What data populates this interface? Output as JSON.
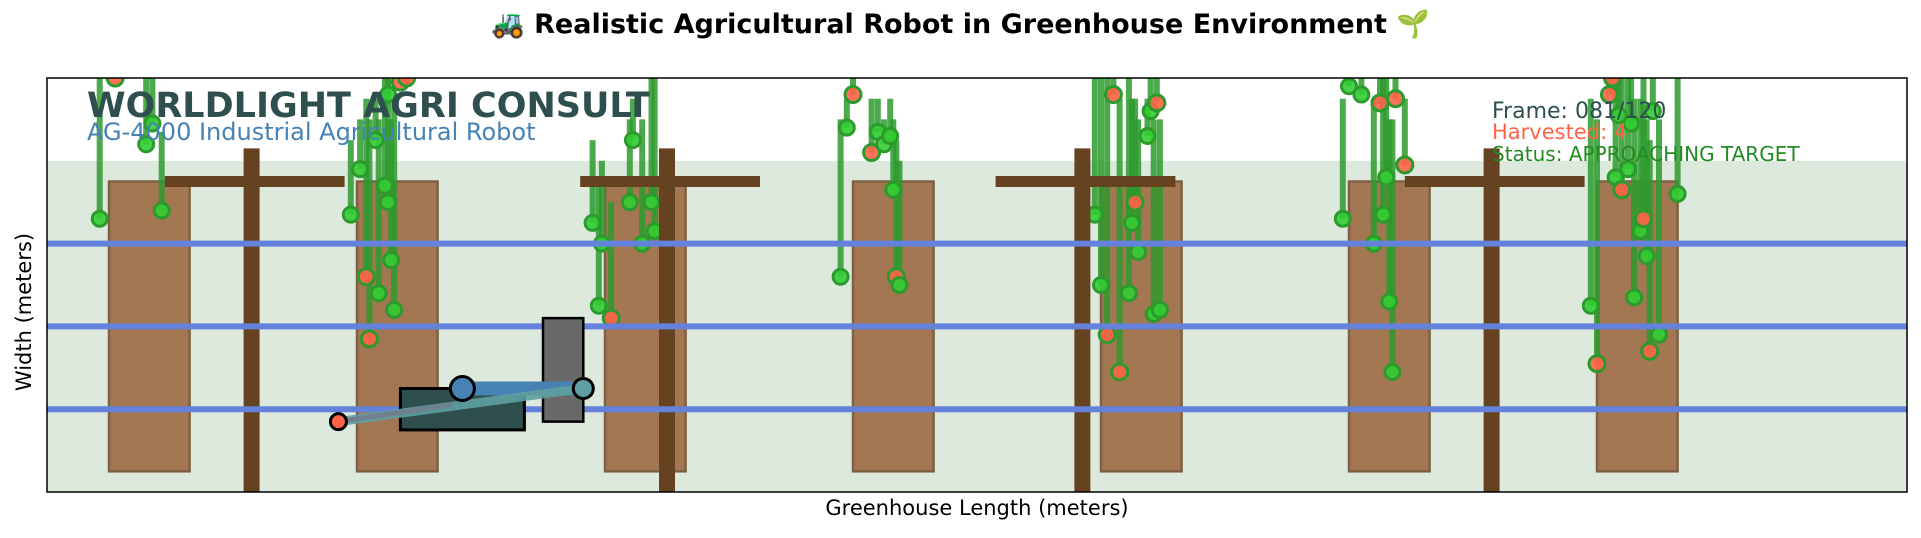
{
  "chart_data": {
    "type": "scatter",
    "title": "🚜 Realistic Agricultural Robot in Greenhouse Environment 🌱",
    "xlabel": "Greenhouse Length (meters)",
    "ylabel": "Width (meters)",
    "xlim": [
      0,
      30
    ],
    "ylim": [
      0,
      10
    ],
    "grid": false,
    "legend": "none",
    "brand_title": "WORLDLIGHT AGRI CONSULT",
    "robot_model": "AG-4000 Industrial Agricultural Robot",
    "frame_text": "Frame: 081/120",
    "harvested_text": "Harvested: 4",
    "status_text": "Status: APPROACHING TARGET",
    "colors": {
      "greenhouse_floor": "#dce9dc",
      "growing_bed": "#a0714a",
      "support_frame": "#654321",
      "irrigation_line": "#6482dc",
      "plant_stem": "#2d9a2d",
      "ripe_fruit": "#ff6347",
      "unripe_fruit": "#32cd32",
      "robot_body": "#2f4f4f",
      "robot_tower": "#696969",
      "robot_arm": "#4682b4"
    },
    "greenhouse": {
      "floor_y": [
        0,
        8
      ]
    },
    "beds": [
      {
        "x": 1.0,
        "y0": 0.5,
        "y1": 7.5
      },
      {
        "x": 5.0,
        "y0": 0.5,
        "y1": 7.5
      },
      {
        "x": 9.0,
        "y0": 0.5,
        "y1": 7.5
      },
      {
        "x": 13.0,
        "y0": 0.5,
        "y1": 7.5
      },
      {
        "x": 17.0,
        "y0": 0.5,
        "y1": 7.5
      },
      {
        "x": 21.0,
        "y0": 0.5,
        "y1": 7.5
      },
      {
        "x": 25.0,
        "y0": 0.5,
        "y1": 7.5
      }
    ],
    "bed_width": 1.3,
    "posts": [
      3.3,
      10.0,
      16.7,
      23.3
    ],
    "crossbeams": [
      {
        "x0": 1.9,
        "x1": 4.8,
        "y": 7.5
      },
      {
        "x0": 8.6,
        "x1": 11.5,
        "y": 7.5
      },
      {
        "x0": 15.3,
        "x1": 18.2,
        "y": 7.5
      },
      {
        "x0": 21.9,
        "x1": 24.8,
        "y": 7.5
      }
    ],
    "irrigation_lines_y": [
      6,
      4,
      2
    ],
    "robot": {
      "body": {
        "x0": 5.7,
        "x1": 7.7,
        "y0": 1.5,
        "y1": 2.5
      },
      "tower": {
        "x0": 8.0,
        "x1": 8.65,
        "y0": 1.7,
        "y1": 4.2
      },
      "joints": [
        [
          6.7,
          2.5
        ],
        [
          8.65,
          2.5
        ]
      ],
      "arm_segments": [
        [
          [
            6.7,
            2.5
          ],
          [
            8.65,
            2.5
          ]
        ],
        [
          [
            4.7,
            1.7
          ],
          [
            8.65,
            2.5
          ]
        ]
      ],
      "gripper": [
        4.7,
        1.7
      ]
    },
    "plants": [
      {
        "bed": 0,
        "x": 0.85,
        "y": 6.6,
        "top": 10,
        "ripe": false
      },
      {
        "bed": 0,
        "x": 1.1,
        "y": 10.0,
        "top": 10,
        "ripe": true
      },
      {
        "bed": 0,
        "x": 1.6,
        "y": 8.4,
        "top": 10,
        "ripe": false
      },
      {
        "bed": 0,
        "x": 1.7,
        "y": 8.9,
        "top": 10,
        "ripe": false
      },
      {
        "bed": 0,
        "x": 1.85,
        "y": 6.8,
        "top": 8.7,
        "ripe": false
      },
      {
        "bed": 1,
        "x": 4.9,
        "y": 6.7,
        "top": 8.5,
        "ripe": false
      },
      {
        "bed": 1,
        "x": 5.05,
        "y": 7.8,
        "top": 9.0,
        "ripe": false
      },
      {
        "bed": 1,
        "x": 5.15,
        "y": 5.2,
        "top": 9.5,
        "ripe": true
      },
      {
        "bed": 1,
        "x": 5.2,
        "y": 3.7,
        "top": 9.0,
        "ripe": true
      },
      {
        "bed": 1,
        "x": 5.3,
        "y": 8.5,
        "top": 9.5,
        "ripe": false
      },
      {
        "bed": 1,
        "x": 5.35,
        "y": 4.8,
        "top": 9.0,
        "ripe": false
      },
      {
        "bed": 1,
        "x": 5.45,
        "y": 7.4,
        "top": 10,
        "ripe": false
      },
      {
        "bed": 1,
        "x": 5.5,
        "y": 9.6,
        "top": 10,
        "ripe": false
      },
      {
        "bed": 1,
        "x": 5.55,
        "y": 5.6,
        "top": 9.0,
        "ripe": false
      },
      {
        "bed": 1,
        "x": 5.6,
        "y": 4.4,
        "top": 9.5,
        "ripe": false
      },
      {
        "bed": 1,
        "x": 5.7,
        "y": 9.9,
        "top": 10,
        "ripe": true
      },
      {
        "bed": 1,
        "x": 5.8,
        "y": 10.0,
        "top": 10,
        "ripe": true
      },
      {
        "bed": 1,
        "x": 5.5,
        "y": 7.0,
        "top": 10,
        "ripe": false
      },
      {
        "bed": 2,
        "x": 8.8,
        "y": 6.5,
        "top": 8.5,
        "ripe": false
      },
      {
        "bed": 2,
        "x": 8.95,
        "y": 6.0,
        "top": 8.0,
        "ripe": false
      },
      {
        "bed": 2,
        "x": 8.9,
        "y": 4.5,
        "top": 7.5,
        "ripe": false
      },
      {
        "bed": 2,
        "x": 9.1,
        "y": 4.2,
        "top": 7.0,
        "ripe": true
      },
      {
        "bed": 2,
        "x": 9.4,
        "y": 7.0,
        "top": 9.0,
        "ripe": false
      },
      {
        "bed": 2,
        "x": 9.45,
        "y": 8.5,
        "top": 9.5,
        "ripe": false
      },
      {
        "bed": 2,
        "x": 9.6,
        "y": 6.0,
        "top": 9.0,
        "ripe": false
      },
      {
        "bed": 2,
        "x": 9.75,
        "y": 7.0,
        "top": 10,
        "ripe": false
      },
      {
        "bed": 2,
        "x": 9.8,
        "y": 6.3,
        "top": 10,
        "ripe": false
      },
      {
        "bed": 3,
        "x": 12.8,
        "y": 5.2,
        "top": 9.0,
        "ripe": false
      },
      {
        "bed": 3,
        "x": 12.9,
        "y": 8.8,
        "top": 9.5,
        "ripe": false
      },
      {
        "bed": 3,
        "x": 13.0,
        "y": 9.6,
        "top": 10,
        "ripe": true
      },
      {
        "bed": 3,
        "x": 13.3,
        "y": 8.2,
        "top": 9.5,
        "ripe": true
      },
      {
        "bed": 3,
        "x": 13.4,
        "y": 8.7,
        "top": 9.5,
        "ripe": false
      },
      {
        "bed": 3,
        "x": 13.5,
        "y": 8.4,
        "top": 9.0,
        "ripe": false
      },
      {
        "bed": 3,
        "x": 13.6,
        "y": 8.6,
        "top": 9.5,
        "ripe": false
      },
      {
        "bed": 3,
        "x": 13.65,
        "y": 7.3,
        "top": 9.0,
        "ripe": false
      },
      {
        "bed": 3,
        "x": 13.7,
        "y": 5.2,
        "top": 8.5,
        "ripe": true
      },
      {
        "bed": 3,
        "x": 13.75,
        "y": 5.0,
        "top": 8.0,
        "ripe": false
      },
      {
        "bed": 4,
        "x": 16.9,
        "y": 6.7,
        "top": 10,
        "ripe": false
      },
      {
        "bed": 4,
        "x": 17.0,
        "y": 5.0,
        "top": 10,
        "ripe": false
      },
      {
        "bed": 4,
        "x": 17.1,
        "y": 3.8,
        "top": 10,
        "ripe": true
      },
      {
        "bed": 4,
        "x": 17.2,
        "y": 9.6,
        "top": 10,
        "ripe": true
      },
      {
        "bed": 4,
        "x": 17.3,
        "y": 2.9,
        "top": 9.5,
        "ripe": true
      },
      {
        "bed": 4,
        "x": 17.45,
        "y": 4.8,
        "top": 10,
        "ripe": false
      },
      {
        "bed": 4,
        "x": 17.5,
        "y": 6.5,
        "top": 9.5,
        "ripe": false
      },
      {
        "bed": 4,
        "x": 17.55,
        "y": 7.0,
        "top": 9.5,
        "ripe": true
      },
      {
        "bed": 4,
        "x": 17.6,
        "y": 5.8,
        "top": 9.0,
        "ripe": false
      },
      {
        "bed": 4,
        "x": 17.75,
        "y": 8.6,
        "top": 9.5,
        "ripe": false
      },
      {
        "bed": 4,
        "x": 17.8,
        "y": 9.2,
        "top": 10,
        "ripe": false
      },
      {
        "bed": 4,
        "x": 17.85,
        "y": 4.3,
        "top": 9.0,
        "ripe": false
      },
      {
        "bed": 4,
        "x": 17.9,
        "y": 9.4,
        "top": 10,
        "ripe": true
      },
      {
        "bed": 4,
        "x": 17.95,
        "y": 4.4,
        "top": 9.0,
        "ripe": false
      },
      {
        "bed": 5,
        "x": 20.9,
        "y": 6.6,
        "top": 9.5,
        "ripe": false
      },
      {
        "bed": 5,
        "x": 21.0,
        "y": 9.8,
        "top": 10,
        "ripe": false
      },
      {
        "bed": 5,
        "x": 21.2,
        "y": 9.6,
        "top": 10,
        "ripe": false
      },
      {
        "bed": 5,
        "x": 21.4,
        "y": 6.0,
        "top": 9.5,
        "ripe": false
      },
      {
        "bed": 5,
        "x": 21.5,
        "y": 9.4,
        "top": 10,
        "ripe": true
      },
      {
        "bed": 5,
        "x": 21.55,
        "y": 6.7,
        "top": 10,
        "ripe": false
      },
      {
        "bed": 5,
        "x": 21.6,
        "y": 7.6,
        "top": 10,
        "ripe": false
      },
      {
        "bed": 5,
        "x": 21.65,
        "y": 4.6,
        "top": 9.0,
        "ripe": false
      },
      {
        "bed": 5,
        "x": 21.7,
        "y": 2.9,
        "top": 9.0,
        "ripe": false
      },
      {
        "bed": 5,
        "x": 21.75,
        "y": 9.5,
        "top": 10,
        "ripe": true
      },
      {
        "bed": 5,
        "x": 21.9,
        "y": 7.9,
        "top": 9.5,
        "ripe": true
      },
      {
        "bed": 6,
        "x": 24.9,
        "y": 4.5,
        "top": 9.5,
        "ripe": false
      },
      {
        "bed": 6,
        "x": 25.0,
        "y": 3.1,
        "top": 9.0,
        "ripe": true
      },
      {
        "bed": 6,
        "x": 25.2,
        "y": 9.6,
        "top": 10,
        "ripe": true
      },
      {
        "bed": 6,
        "x": 25.25,
        "y": 10.0,
        "top": 10,
        "ripe": true
      },
      {
        "bed": 6,
        "x": 25.3,
        "y": 7.6,
        "top": 10,
        "ripe": false
      },
      {
        "bed": 6,
        "x": 25.35,
        "y": 9.1,
        "top": 10,
        "ripe": false
      },
      {
        "bed": 6,
        "x": 25.4,
        "y": 7.3,
        "top": 10,
        "ripe": true
      },
      {
        "bed": 6,
        "x": 25.5,
        "y": 7.8,
        "top": 10,
        "ripe": false
      },
      {
        "bed": 6,
        "x": 25.55,
        "y": 8.9,
        "top": 10,
        "ripe": false
      },
      {
        "bed": 6,
        "x": 25.6,
        "y": 4.7,
        "top": 9.5,
        "ripe": false
      },
      {
        "bed": 6,
        "x": 25.7,
        "y": 6.3,
        "top": 9.5,
        "ripe": false
      },
      {
        "bed": 6,
        "x": 25.75,
        "y": 6.6,
        "top": 10,
        "ripe": true
      },
      {
        "bed": 6,
        "x": 25.8,
        "y": 5.7,
        "top": 9.0,
        "ripe": false
      },
      {
        "bed": 6,
        "x": 25.85,
        "y": 3.4,
        "top": 8.5,
        "ripe": true
      },
      {
        "bed": 6,
        "x": 25.9,
        "y": 9.2,
        "top": 10,
        "ripe": false
      },
      {
        "bed": 6,
        "x": 26.0,
        "y": 3.8,
        "top": 9.0,
        "ripe": false
      },
      {
        "bed": 6,
        "x": 26.3,
        "y": 7.2,
        "top": 10,
        "ripe": false
      }
    ]
  }
}
